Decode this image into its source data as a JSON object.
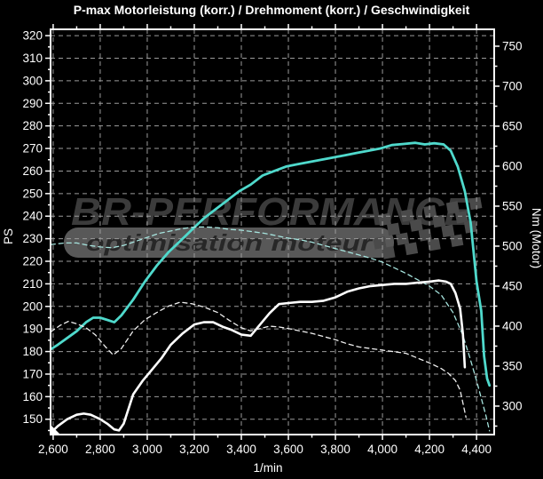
{
  "title": "P-max Motorleistung (korr.) / Drehmoment (korr.) / Geschwindigkeit",
  "watermark": {
    "line1": "BR-PERFORMANCE",
    "line2": "optimisation moteur"
  },
  "colors": {
    "background": "#000000",
    "foreground": "#ffffff",
    "grid": "#9b9b9b",
    "curve_cyan": "#4fd9cc",
    "curve_cyan_dashed": "#a6e4de",
    "curve_white": "#ffffff",
    "curve_white_dashed": "#efefef",
    "watermark_text": "#3b3b3b",
    "watermark_bar": "#585858",
    "watermark_bar_text": "#272727",
    "watermark_flag": "#4a4a4a"
  },
  "chart_data": {
    "type": "line",
    "title": "P-max Motorleistung (korr.) / Drehmoment (korr.) / Geschwindigkeit",
    "grid": true,
    "legend": "none",
    "x_axis": {
      "label": "1/min",
      "range": [
        2589,
        4475
      ],
      "minor_tick_step": 100,
      "ticks": [
        {
          "value": 2600,
          "label": "2,600"
        },
        {
          "value": 2800,
          "label": "2,800"
        },
        {
          "value": 3000,
          "label": "3,000"
        },
        {
          "value": 3200,
          "label": "3,200"
        },
        {
          "value": 3400,
          "label": "3,400"
        },
        {
          "value": 3600,
          "label": "3,600"
        },
        {
          "value": 3800,
          "label": "3,800"
        },
        {
          "value": 4000,
          "label": "4,000"
        },
        {
          "value": 4200,
          "label": "4,200"
        },
        {
          "value": 4400,
          "label": "4,400"
        }
      ]
    },
    "y_left": {
      "label": "PS",
      "range": [
        143.2,
        322.8
      ],
      "minor_tick_step": 5,
      "ticks": [
        150,
        160,
        170,
        180,
        190,
        200,
        210,
        220,
        230,
        240,
        250,
        260,
        270,
        280,
        290,
        300,
        310,
        320
      ]
    },
    "y_right": {
      "label": "Nm (Motor)",
      "range": [
        264.4,
        771.1
      ],
      "minor_tick_step": 25,
      "ticks": [
        300,
        350,
        400,
        450,
        500,
        550,
        600,
        650,
        700,
        750
      ]
    },
    "series": [
      {
        "name": "power_cyan_solid",
        "axis": "left",
        "unit": "PS",
        "style": "solid",
        "color_key": "curve_cyan",
        "width": 2.8,
        "points": [
          [
            2590,
            181
          ],
          [
            2620,
            183
          ],
          [
            2660,
            186
          ],
          [
            2700,
            189
          ],
          [
            2740,
            193
          ],
          [
            2770,
            195
          ],
          [
            2800,
            195
          ],
          [
            2830,
            194
          ],
          [
            2860,
            193
          ],
          [
            2890,
            196
          ],
          [
            2940,
            203
          ],
          [
            2990,
            211
          ],
          [
            3040,
            218
          ],
          [
            3090,
            224
          ],
          [
            3140,
            229
          ],
          [
            3190,
            234
          ],
          [
            3240,
            239
          ],
          [
            3290,
            243
          ],
          [
            3340,
            247
          ],
          [
            3390,
            251
          ],
          [
            3440,
            254
          ],
          [
            3490,
            258
          ],
          [
            3540,
            260
          ],
          [
            3590,
            262
          ],
          [
            3640,
            263
          ],
          [
            3690,
            264
          ],
          [
            3740,
            265
          ],
          [
            3790,
            266
          ],
          [
            3840,
            267
          ],
          [
            3890,
            268
          ],
          [
            3940,
            269
          ],
          [
            3990,
            270
          ],
          [
            4040,
            271.5
          ],
          [
            4090,
            272
          ],
          [
            4140,
            272.5
          ],
          [
            4180,
            271.8
          ],
          [
            4220,
            272.3
          ],
          [
            4260,
            271.8
          ],
          [
            4290,
            269
          ],
          [
            4320,
            262
          ],
          [
            4350,
            251
          ],
          [
            4375,
            237
          ],
          [
            4400,
            211
          ],
          [
            4420,
            198
          ],
          [
            4432,
            178
          ],
          [
            4445,
            168
          ],
          [
            4455,
            165
          ]
        ]
      },
      {
        "name": "torque_cyan_dashed",
        "axis": "right",
        "unit": "Nm",
        "style": "dashed",
        "color_key": "curve_cyan_dashed",
        "width": 1.3,
        "points": [
          [
            2590,
            502
          ],
          [
            2650,
            504
          ],
          [
            2700,
            504
          ],
          [
            2750,
            501
          ],
          [
            2800,
            499
          ],
          [
            2850,
            498
          ],
          [
            2900,
            501
          ],
          [
            2950,
            506
          ],
          [
            3000,
            511
          ],
          [
            3050,
            516
          ],
          [
            3100,
            519
          ],
          [
            3150,
            522
          ],
          [
            3200,
            524
          ],
          [
            3250,
            524
          ],
          [
            3300,
            523
          ],
          [
            3350,
            521
          ],
          [
            3400,
            520
          ],
          [
            3450,
            518
          ],
          [
            3500,
            516
          ],
          [
            3550,
            513
          ],
          [
            3600,
            510
          ],
          [
            3650,
            508
          ],
          [
            3700,
            505
          ],
          [
            3750,
            501
          ],
          [
            3800,
            497
          ],
          [
            3850,
            493
          ],
          [
            3900,
            489
          ],
          [
            3950,
            485
          ],
          [
            4000,
            480
          ],
          [
            4050,
            473
          ],
          [
            4100,
            466
          ],
          [
            4150,
            458
          ],
          [
            4200,
            450
          ],
          [
            4250,
            439
          ],
          [
            4300,
            417
          ],
          [
            4340,
            390
          ],
          [
            4370,
            362
          ],
          [
            4400,
            332
          ],
          [
            4420,
            310
          ],
          [
            4440,
            288
          ],
          [
            4455,
            269
          ]
        ]
      },
      {
        "name": "power_white_solid",
        "axis": "left",
        "unit": "PS",
        "style": "solid",
        "color_key": "curve_white",
        "width": 2.6,
        "points": [
          [
            2590,
            144
          ],
          [
            2620,
            147
          ],
          [
            2660,
            150
          ],
          [
            2700,
            152
          ],
          [
            2730,
            152.5
          ],
          [
            2760,
            152
          ],
          [
            2800,
            150
          ],
          [
            2830,
            148
          ],
          [
            2860,
            145.5
          ],
          [
            2880,
            145
          ],
          [
            2900,
            148
          ],
          [
            2940,
            161
          ],
          [
            2980,
            167
          ],
          [
            3020,
            172
          ],
          [
            3060,
            177
          ],
          [
            3100,
            183
          ],
          [
            3150,
            188
          ],
          [
            3200,
            192
          ],
          [
            3240,
            193
          ],
          [
            3280,
            193
          ],
          [
            3320,
            191
          ],
          [
            3360,
            189.5
          ],
          [
            3400,
            187.5
          ],
          [
            3440,
            187
          ],
          [
            3480,
            192
          ],
          [
            3520,
            197
          ],
          [
            3560,
            201
          ],
          [
            3600,
            201.5
          ],
          [
            3650,
            202
          ],
          [
            3700,
            202
          ],
          [
            3750,
            202.5
          ],
          [
            3800,
            204
          ],
          [
            3850,
            206.5
          ],
          [
            3900,
            208
          ],
          [
            3950,
            209
          ],
          [
            4000,
            209.5
          ],
          [
            4050,
            210
          ],
          [
            4100,
            210
          ],
          [
            4150,
            210.5
          ],
          [
            4200,
            211
          ],
          [
            4240,
            211.5
          ],
          [
            4270,
            211
          ],
          [
            4290,
            210
          ],
          [
            4310,
            206
          ],
          [
            4330,
            199
          ],
          [
            4342,
            188
          ],
          [
            4350,
            173
          ]
        ]
      },
      {
        "name": "torque_white_dashed",
        "axis": "right",
        "unit": "Nm",
        "style": "dashed",
        "color_key": "curve_white_dashed",
        "width": 1.3,
        "points": [
          [
            2590,
            393
          ],
          [
            2630,
            401
          ],
          [
            2665,
            406
          ],
          [
            2700,
            403
          ],
          [
            2740,
            398
          ],
          [
            2780,
            389
          ],
          [
            2820,
            375
          ],
          [
            2855,
            364
          ],
          [
            2890,
            372
          ],
          [
            2940,
            394
          ],
          [
            2990,
            408
          ],
          [
            3040,
            417
          ],
          [
            3090,
            425
          ],
          [
            3140,
            430
          ],
          [
            3190,
            428
          ],
          [
            3240,
            424
          ],
          [
            3300,
            417
          ],
          [
            3350,
            407
          ],
          [
            3400,
            398
          ],
          [
            3440,
            394
          ],
          [
            3480,
            397
          ],
          [
            3520,
            400
          ],
          [
            3560,
            399
          ],
          [
            3600,
            397
          ],
          [
            3650,
            394
          ],
          [
            3700,
            391
          ],
          [
            3750,
            387
          ],
          [
            3800,
            383
          ],
          [
            3850,
            378
          ],
          [
            3900,
            374
          ],
          [
            3950,
            372
          ],
          [
            4000,
            370
          ],
          [
            4050,
            368
          ],
          [
            4100,
            366
          ],
          [
            4150,
            360
          ],
          [
            4200,
            354
          ],
          [
            4250,
            347
          ],
          [
            4280,
            341
          ],
          [
            4310,
            332
          ],
          [
            4330,
            320
          ],
          [
            4345,
            300
          ],
          [
            4355,
            286
          ]
        ]
      }
    ]
  }
}
